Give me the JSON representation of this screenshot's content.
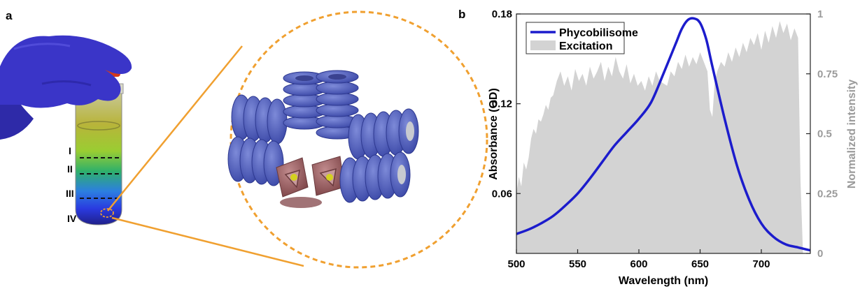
{
  "panels": {
    "a": {
      "label": "a",
      "bands": [
        "I",
        "II",
        "III",
        "IV"
      ]
    },
    "b": {
      "label": "b"
    }
  },
  "colors": {
    "phycobilisome": "#1c1ccc",
    "excitation": "#d3d3d3",
    "callout": "#f0a030",
    "glove": "#3a35c8",
    "rods": "#5663c0",
    "core": "#9b5a5e"
  },
  "icons": [
    "gloved-hand-icon",
    "test-tube-icon",
    "phycobilisome-model-icon"
  ],
  "chart_data": {
    "type": "line",
    "xlabel": "Wavelength (nm)",
    "ylabel": "Absorbance (OD)",
    "y2label": "Normalized intensity",
    "xlim": [
      500,
      740
    ],
    "ylim": [
      0.02,
      0.18
    ],
    "y2lim": [
      0,
      1
    ],
    "xticks": [
      500,
      550,
      600,
      650,
      700
    ],
    "yticks": [
      0.06,
      0.12,
      0.18
    ],
    "y2ticks": [
      "0",
      "0.25",
      "0.5",
      "0.75",
      "1"
    ],
    "y2tick_values": [
      0,
      0.25,
      0.5,
      0.75,
      1
    ],
    "legend_position": "top-left",
    "grid": false,
    "series": [
      {
        "name": "Phycobilisome",
        "type": "line",
        "axis": "left",
        "x": [
          500,
          510,
          520,
          530,
          540,
          550,
          560,
          570,
          580,
          590,
          600,
          610,
          620,
          630,
          635,
          640,
          645,
          650,
          655,
          660,
          670,
          680,
          690,
          700,
          710,
          720,
          730,
          740
        ],
        "y": [
          0.033,
          0.036,
          0.04,
          0.045,
          0.052,
          0.06,
          0.07,
          0.081,
          0.092,
          0.101,
          0.11,
          0.121,
          0.14,
          0.16,
          0.17,
          0.176,
          0.177,
          0.174,
          0.163,
          0.145,
          0.11,
          0.079,
          0.056,
          0.04,
          0.031,
          0.026,
          0.024,
          0.022
        ]
      },
      {
        "name": "Excitation",
        "type": "area",
        "axis": "right",
        "x": [
          500,
          502,
          504,
          506,
          508,
          510,
          512,
          514,
          516,
          518,
          520,
          522,
          524,
          526,
          528,
          530,
          533,
          536,
          539,
          542,
          545,
          548,
          551,
          554,
          557,
          560,
          563,
          566,
          569,
          572,
          575,
          578,
          581,
          584,
          587,
          590,
          593,
          596,
          599,
          602,
          605,
          608,
          611,
          614,
          617,
          620,
          623,
          626,
          629,
          632,
          635,
          638,
          641,
          644,
          647,
          650,
          653,
          656,
          658,
          660,
          662,
          664,
          667,
          670,
          673,
          676,
          679,
          682,
          685,
          688,
          691,
          694,
          697,
          700,
          703,
          706,
          709,
          712,
          715,
          718,
          721,
          724,
          727,
          730,
          732,
          734
        ],
        "y": [
          0.25,
          0.32,
          0.28,
          0.38,
          0.35,
          0.4,
          0.48,
          0.52,
          0.5,
          0.56,
          0.55,
          0.58,
          0.62,
          0.6,
          0.65,
          0.66,
          0.72,
          0.76,
          0.7,
          0.74,
          0.68,
          0.77,
          0.72,
          0.75,
          0.7,
          0.78,
          0.73,
          0.76,
          0.8,
          0.72,
          0.78,
          0.74,
          0.82,
          0.76,
          0.73,
          0.79,
          0.71,
          0.75,
          0.7,
          0.72,
          0.68,
          0.74,
          0.7,
          0.76,
          0.72,
          0.71,
          0.7,
          0.76,
          0.74,
          0.8,
          0.77,
          0.83,
          0.78,
          0.82,
          0.79,
          0.84,
          0.8,
          0.76,
          0.6,
          0.57,
          0.72,
          0.76,
          0.8,
          0.78,
          0.84,
          0.8,
          0.86,
          0.82,
          0.88,
          0.84,
          0.9,
          0.87,
          0.92,
          0.85,
          0.93,
          0.88,
          0.95,
          0.9,
          0.97,
          0.92,
          0.96,
          0.89,
          0.94,
          0.9,
          0.3,
          0.0
        ]
      }
    ]
  }
}
